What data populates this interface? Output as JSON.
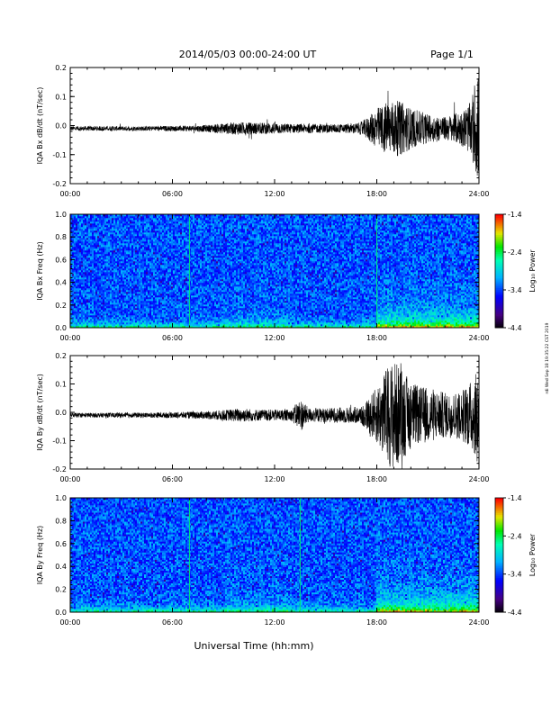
{
  "header": {
    "title": "2014/05/03  00:00-24:00 UT",
    "page": "Page 1/1"
  },
  "side_note": "rdi Wed Sep 18 19:35:22 CST 2019",
  "xlabel": "Universal Time (hh:mm)",
  "chart_data": [
    {
      "type": "line",
      "ylabel": "IQA Bx dB/dt (nT/sec)",
      "xlim": [
        0,
        24
      ],
      "ylim": [
        -0.2,
        0.2
      ],
      "x_ticks": [
        "00:00",
        "06:00",
        "12:00",
        "18:00",
        "24:00"
      ],
      "y_ticks": [
        "0.2",
        "0.1",
        "0.0",
        "-0.1",
        "-0.2"
      ],
      "envelope_hours": [
        0,
        2,
        4,
        6,
        7,
        8,
        9,
        10,
        11,
        12,
        13,
        14,
        15,
        16,
        17,
        17.5,
        18,
        18.5,
        19,
        19.5,
        20,
        20.5,
        21,
        21.5,
        22,
        22.5,
        23,
        23.5,
        24
      ],
      "envelope_amplitude": [
        0.008,
        0.008,
        0.008,
        0.009,
        0.01,
        0.012,
        0.018,
        0.022,
        0.02,
        0.02,
        0.016,
        0.016,
        0.015,
        0.015,
        0.02,
        0.04,
        0.07,
        0.09,
        0.1,
        0.09,
        0.07,
        0.06,
        0.05,
        0.045,
        0.04,
        0.05,
        0.06,
        0.09,
        0.2
      ]
    },
    {
      "type": "heatmap",
      "ylabel": "IQA Bx Freq (Hz)",
      "xlim": [
        0,
        24
      ],
      "ylim": [
        0,
        1.0
      ],
      "x_ticks": [
        "00:00",
        "06:00",
        "12:00",
        "18:00",
        "24:00"
      ],
      "y_ticks": [
        "1.0",
        "0.8",
        "0.6",
        "0.4",
        "0.2",
        "0.0"
      ],
      "colorbar": {
        "label": "Log₁₀ Power",
        "ticks": [
          "-1.4",
          "-2.4",
          "-3.4",
          "-4.4"
        ],
        "range": [
          -4.4,
          -1.4
        ]
      },
      "vertical_lines_hours": [
        7.0,
        18.0
      ],
      "enhancement_hours": [
        18,
        24
      ]
    },
    {
      "type": "line",
      "ylabel": "IQA By dB/dt (nT/sec)",
      "xlim": [
        0,
        24
      ],
      "ylim": [
        -0.2,
        0.2
      ],
      "x_ticks": [
        "00:00",
        "06:00",
        "12:00",
        "18:00",
        "24:00"
      ],
      "y_ticks": [
        "0.2",
        "0.1",
        "0.0",
        "-0.1",
        "-0.2"
      ],
      "envelope_hours": [
        0,
        2,
        4,
        6,
        7,
        8,
        9,
        10,
        11,
        12,
        13,
        13.5,
        14,
        15,
        16,
        17,
        17.5,
        18,
        18.5,
        19,
        19.5,
        20,
        20.5,
        21,
        21.5,
        22,
        22.5,
        23,
        23.5,
        24
      ],
      "envelope_amplitude": [
        0.008,
        0.008,
        0.009,
        0.01,
        0.012,
        0.014,
        0.018,
        0.025,
        0.02,
        0.02,
        0.02,
        0.06,
        0.025,
        0.025,
        0.028,
        0.03,
        0.06,
        0.1,
        0.16,
        0.2,
        0.16,
        0.12,
        0.1,
        0.1,
        0.09,
        0.08,
        0.08,
        0.09,
        0.12,
        0.16
      ]
    },
    {
      "type": "heatmap",
      "ylabel": "IQA By Freq (Hz)",
      "xlim": [
        0,
        24
      ],
      "ylim": [
        0,
        1.0
      ],
      "x_ticks": [
        "00:00",
        "06:00",
        "12:00",
        "18:00",
        "24:00"
      ],
      "y_ticks": [
        "1.0",
        "0.8",
        "0.6",
        "0.4",
        "0.2",
        "0.0"
      ],
      "colorbar": {
        "label": "Log₁₀ Power",
        "ticks": [
          "-1.4",
          "-2.4",
          "-3.4",
          "-4.4"
        ],
        "range": [
          -4.4,
          -1.4
        ]
      },
      "vertical_lines_hours": [
        7.0,
        13.5
      ],
      "enhancement_hours": [
        18,
        24
      ]
    }
  ]
}
